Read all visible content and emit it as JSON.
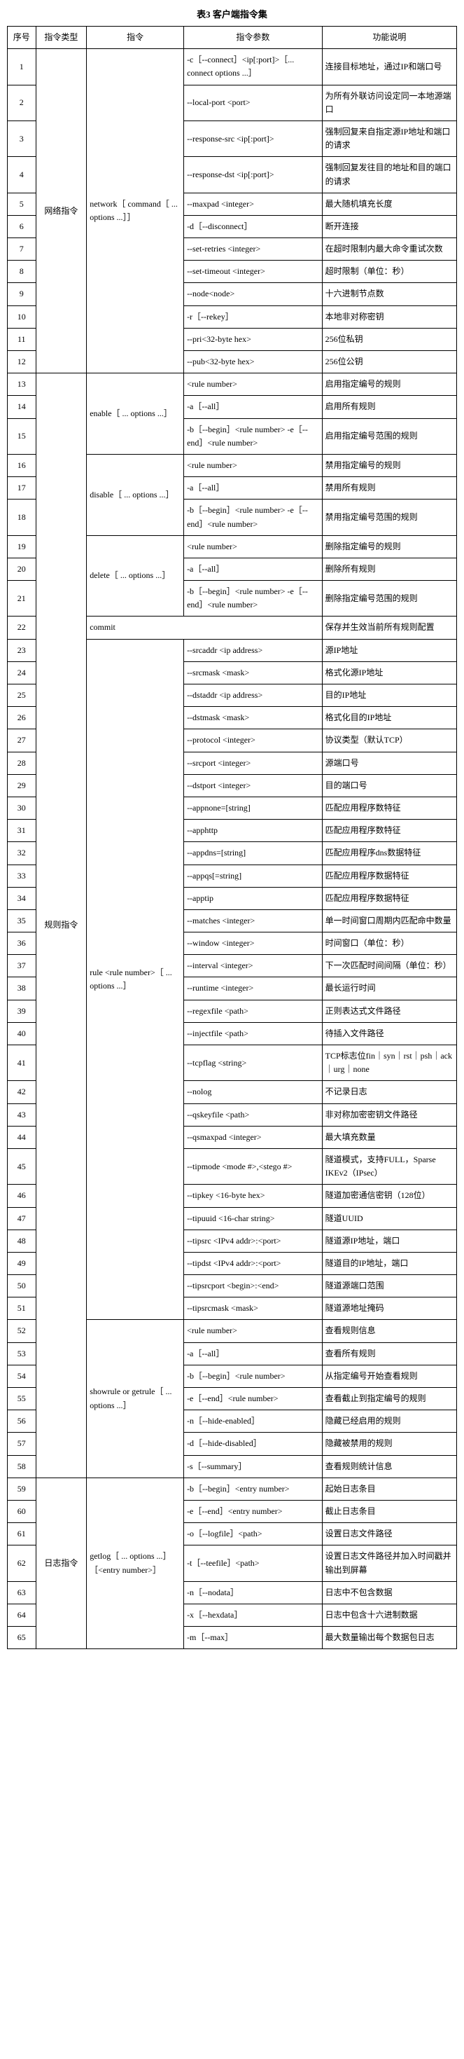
{
  "title": "表3 客户端指令集",
  "header": [
    "序号",
    "指令类型",
    "指令",
    "指令参数",
    "功能说明"
  ],
  "rows": [
    {
      "n": "1",
      "t": "网络指令",
      "c": "network［ command［ ... options ...］］",
      "p": "-c［--connect］<ip[:port]>［... connect options ...］",
      "d": "连接目标地址，通过IP和端口号"
    },
    {
      "n": "2",
      "p": "--local-port <port>",
      "d": "为所有外联访问设定同一本地源端口"
    },
    {
      "n": "3",
      "p": "--response-src <ip[:port]>",
      "d": "强制回复来自指定源IP地址和端口的请求"
    },
    {
      "n": "4",
      "p": "--response-dst <ip[:port]>",
      "d": "强制回复发往目的地址和目的端口的请求"
    },
    {
      "n": "5",
      "p": "--maxpad <integer>",
      "d": "最大随机填充长度"
    },
    {
      "n": "6",
      "p": "-d［--disconnect］",
      "d": "断开连接"
    },
    {
      "n": "7",
      "p": "--set-retries <integer>",
      "d": "在超时限制内最大命令重试次数"
    },
    {
      "n": "8",
      "p": "--set-timeout <integer>",
      "d": "超时限制（单位：秒）"
    },
    {
      "n": "9",
      "p": "--node<node>",
      "d": "十六进制节点数"
    },
    {
      "n": "10",
      "p": "-r［--rekey］",
      "d": "本地非对称密钥"
    },
    {
      "n": "11",
      "p": "--pri<32-byte hex>",
      "d": "256位私钥"
    },
    {
      "n": "12",
      "p": "--pub<32-byte hex>",
      "d": "256位公钥"
    },
    {
      "n": "13",
      "c": "enable［ ... options ...］",
      "p": "<rule number>",
      "d": "启用指定编号的规则"
    },
    {
      "n": "14",
      "p": "-a［--all］",
      "d": "启用所有规则"
    },
    {
      "n": "15",
      "p": "-b［--begin］<rule number> -e［--end］<rule number>",
      "d": "启用指定编号范围的规则"
    },
    {
      "n": "16",
      "c": "disable［ ... options ...］",
      "p": "<rule number>",
      "d": "禁用指定编号的规则"
    },
    {
      "n": "17",
      "p": "-a［--all］",
      "d": "禁用所有规则"
    },
    {
      "n": "18",
      "p": "-b［--begin］<rule number> -e［--end］<rule number>",
      "d": "禁用指定编号范围的规则"
    },
    {
      "n": "19",
      "c": "delete［ ... options ...］",
      "p": "<rule number>",
      "d": "删除指定编号的规则"
    },
    {
      "n": "20",
      "p": "-a［--all］",
      "d": "删除所有规则"
    },
    {
      "n": "21",
      "p": "-b［--begin］<rule number> -e［--end］<rule number>",
      "d": "删除指定编号范围的规则"
    },
    {
      "n": "22",
      "c": "commit",
      "p": "",
      "d": "保存并生效当前所有规则配置"
    },
    {
      "n": "23",
      "t": "规则指令",
      "c": "rule <rule number>［ ... options ...］",
      "p": "--srcaddr <ip address>",
      "d": "源IP地址"
    },
    {
      "n": "24",
      "p": "--srcmask <mask>",
      "d": "格式化源IP地址"
    },
    {
      "n": "25",
      "p": "--dstaddr <ip address>",
      "d": "目的IP地址"
    },
    {
      "n": "26",
      "p": "--dstmask <mask>",
      "d": "格式化目的IP地址"
    },
    {
      "n": "27",
      "p": "--protocol <integer>",
      "d": "协议类型（默认TCP）"
    },
    {
      "n": "28",
      "p": "--srcport <integer>",
      "d": "源端口号"
    },
    {
      "n": "29",
      "p": "--dstport <integer>",
      "d": "目的端口号"
    },
    {
      "n": "30",
      "p": "--appnone=[string]",
      "d": "匹配应用程序数特征"
    },
    {
      "n": "31",
      "p": "--apphttp",
      "d": "匹配应用程序数特征"
    },
    {
      "n": "32",
      "p": "--appdns=[string]",
      "d": "匹配应用程序dns数据特征"
    },
    {
      "n": "33",
      "p": "--appqs[=string]",
      "d": "匹配应用程序数据特征"
    },
    {
      "n": "34",
      "p": "--apptip",
      "d": "匹配应用程序数据特征"
    },
    {
      "n": "35",
      "p": "--matches <integer>",
      "d": "单一时间窗口周期内匹配命中数量"
    },
    {
      "n": "36",
      "p": "--window <integer>",
      "d": "时间窗口（单位：秒）"
    },
    {
      "n": "37",
      "p": "--interval <integer>",
      "d": "下一次匹配时间间隔（单位：秒）"
    },
    {
      "n": "38",
      "p": "--runtime <integer>",
      "d": "最长运行时间"
    },
    {
      "n": "39",
      "p": "--regexfile <path>",
      "d": "正则表达式文件路径"
    },
    {
      "n": "40",
      "p": "--injectfile <path>",
      "d": "待插入文件路径"
    },
    {
      "n": "41",
      "p": "--tcpflag <string>",
      "d": "TCP标志位fin｜syn｜rst｜psh｜ack｜urg｜none"
    },
    {
      "n": "42",
      "p": "--nolog",
      "d": "不记录日志"
    },
    {
      "n": "43",
      "p": "--qskeyfile <path>",
      "d": "非对称加密密钥文件路径"
    },
    {
      "n": "44",
      "p": "--qsmaxpad <integer>",
      "d": "最大填充数量"
    },
    {
      "n": "45",
      "p": "--tipmode <mode #>,<stego #>",
      "d": "隧道模式，支持FULL，Sparse IKEv2（IPsec）"
    },
    {
      "n": "46",
      "p": "--tipkey <16-byte hex>",
      "d": "隧道加密通信密钥（128位）"
    },
    {
      "n": "47",
      "p": "--tipuuid <16-char string>",
      "d": "隧道UUID"
    },
    {
      "n": "48",
      "p": "--tipsrc <IPv4 addr>:<port>",
      "d": "隧道源IP地址，端口"
    },
    {
      "n": "49",
      "p": "--tipdst <IPv4 addr>:<port>",
      "d": "隧道目的IP地址，端口"
    },
    {
      "n": "50",
      "p": "--tipsrcport <begin>:<end>",
      "d": "隧道源端口范围"
    },
    {
      "n": "51",
      "p": "--tipsrcmask <mask>",
      "d": "隧道源地址掩码"
    },
    {
      "n": "52",
      "c": "showrule or getrule［ ... options ...］",
      "p": "<rule number>",
      "d": "查看规则信息"
    },
    {
      "n": "53",
      "p": "-a［--all］",
      "d": "查看所有规则"
    },
    {
      "n": "54",
      "p": "-b［--begin］<rule number>",
      "d": "从指定编号开始查看规则"
    },
    {
      "n": "55",
      "p": "-e［--end］<rule number>",
      "d": "查看截止到指定编号的规则"
    },
    {
      "n": "56",
      "p": "-n［--hide-enabled］",
      "d": "隐藏已经启用的规则"
    },
    {
      "n": "57",
      "p": "-d［--hide-disabled］",
      "d": "隐藏被禁用的规则"
    },
    {
      "n": "58",
      "p": "-s［--summary］",
      "d": "查看规则统计信息"
    },
    {
      "n": "59",
      "t": "日志指令",
      "c": "getlog［ ... options ...］［<entry number>］",
      "p": "-b［--begin］<entry number>",
      "d": "起始日志条目"
    },
    {
      "n": "60",
      "p": "-e［--end］<entry number>",
      "d": "截止日志条目"
    },
    {
      "n": "61",
      "p": "-o［--logfile］<path>",
      "d": "设置日志文件路径"
    },
    {
      "n": "62",
      "p": "-t［--teefile］<path>",
      "d": "设置日志文件路径并加入时间戳并输出到屏幕"
    },
    {
      "n": "63",
      "p": "-n［--nodata］",
      "d": "日志中不包含数据"
    },
    {
      "n": "64",
      "p": "-x［--hexdata］",
      "d": "日志中包含十六进制数据"
    },
    {
      "n": "65",
      "p": "-m［--max］",
      "d": "最大数量输出每个数据包日志"
    }
  ],
  "spans": {
    "type_net": {
      "start": 1,
      "len": 12
    },
    "type_rule": {
      "start": 13,
      "len": 46
    },
    "type_log": {
      "start": 59,
      "len": 7
    },
    "cmd_network": {
      "start": 1,
      "len": 12
    },
    "cmd_enable": {
      "start": 13,
      "len": 3
    },
    "cmd_disable": {
      "start": 16,
      "len": 3
    },
    "cmd_delete": {
      "start": 19,
      "len": 3
    },
    "cmd_commit": {
      "start": 22,
      "len": 1
    },
    "cmd_rule": {
      "start": 23,
      "len": 29
    },
    "cmd_showrule": {
      "start": 52,
      "len": 7
    },
    "cmd_getlog": {
      "start": 59,
      "len": 7
    }
  }
}
